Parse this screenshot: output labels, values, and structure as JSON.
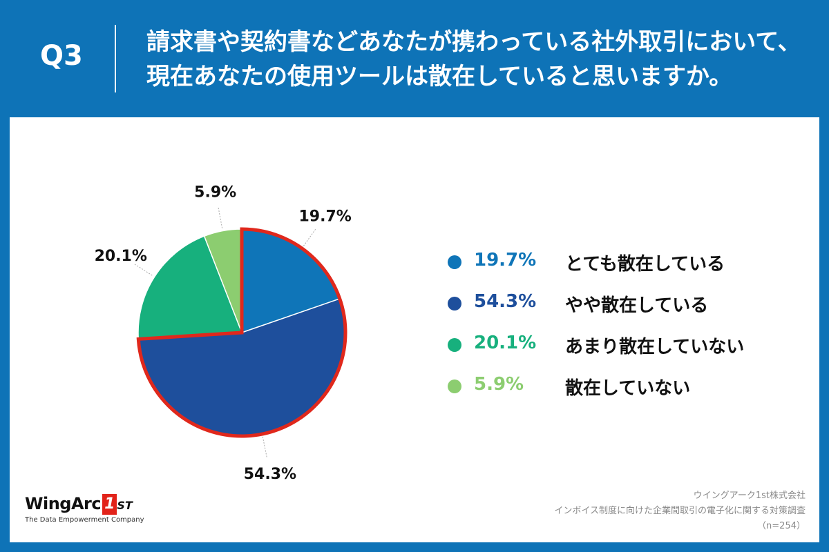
{
  "header": {
    "question_label": "Q3",
    "title_line1": "請求書や契約書などあなたが携わっている社外取引において、",
    "title_line2": "現在あなたの使用ツールは散在していると思いますか。"
  },
  "chart_data": {
    "type": "pie",
    "title": "請求書や契約書などあなたが携わっている社外取引において、現在あなたの使用ツールは散在していると思いますか。",
    "categories": [
      "とても散在している",
      "やや散在している",
      "あまり散在していない",
      "散在していない"
    ],
    "values": [
      19.7,
      54.3,
      20.1,
      5.9
    ],
    "labels": [
      "19.7%",
      "54.3%",
      "20.1%",
      "5.9%"
    ],
    "colors": [
      "#0f75b8",
      "#1e4f9c",
      "#17b07d",
      "#8ccd70"
    ],
    "highlight": [
      "とても散在している",
      "やや散在している"
    ],
    "highlight_color": "#e0281c"
  },
  "legend": {
    "items": [
      {
        "pct": "19.7%",
        "label": "とても散在している",
        "color": "#0f75b8"
      },
      {
        "pct": "54.3%",
        "label": "やや散在している",
        "color": "#1e4f9c"
      },
      {
        "pct": "20.1%",
        "label": "あまり散在していない",
        "color": "#17b07d"
      },
      {
        "pct": "5.9%",
        "label": "散在していない",
        "color": "#8ccd70"
      }
    ]
  },
  "logo": {
    "word": "WingArc",
    "mark": "1",
    "suffix": "ST",
    "tagline": "The Data Empowerment Company"
  },
  "source": {
    "company": "ウイングアーク1st株式会社",
    "survey": "インボイス制度に向けた企業間取引の電子化に関する対策調査",
    "sample": "（n=254）"
  }
}
